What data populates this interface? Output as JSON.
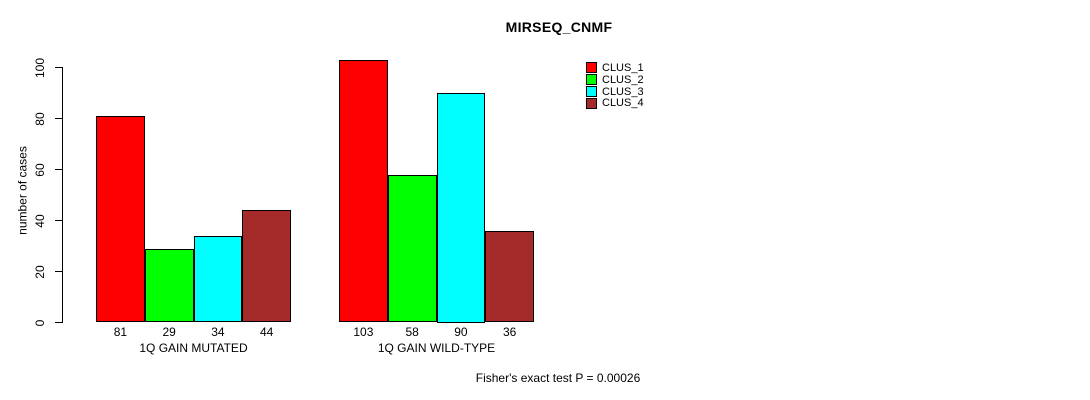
{
  "chart_data": {
    "type": "bar",
    "title": "MIRSEQ_CNMF",
    "ylabel": "number of cases",
    "xlabel": "",
    "categories": [
      "1Q GAIN MUTATED",
      "1Q GAIN WILD-TYPE"
    ],
    "series": [
      {
        "name": "CLUS_1",
        "color": "#FF0000",
        "values": [
          81,
          103
        ]
      },
      {
        "name": "CLUS_2",
        "color": "#00FF00",
        "values": [
          29,
          58
        ]
      },
      {
        "name": "CLUS_3",
        "color": "#00FFFF",
        "values": [
          34,
          90
        ]
      },
      {
        "name": "CLUS_4",
        "color": "#A52A2A",
        "values": [
          44,
          36
        ]
      }
    ],
    "yticks": [
      0,
      20,
      40,
      60,
      80,
      100
    ],
    "ylim": [
      0,
      103
    ],
    "grid": false,
    "bar_value_labels_visible": true,
    "legend": {
      "position": "topright",
      "entries": [
        "CLUS_1",
        "CLUS_2",
        "CLUS_3",
        "CLUS_4"
      ]
    },
    "annotation": "Fisher's exact test P = 0.00026",
    "axis_color": "#000000",
    "bar_border_color": "#000000",
    "background_color": "#FFFFFF"
  }
}
